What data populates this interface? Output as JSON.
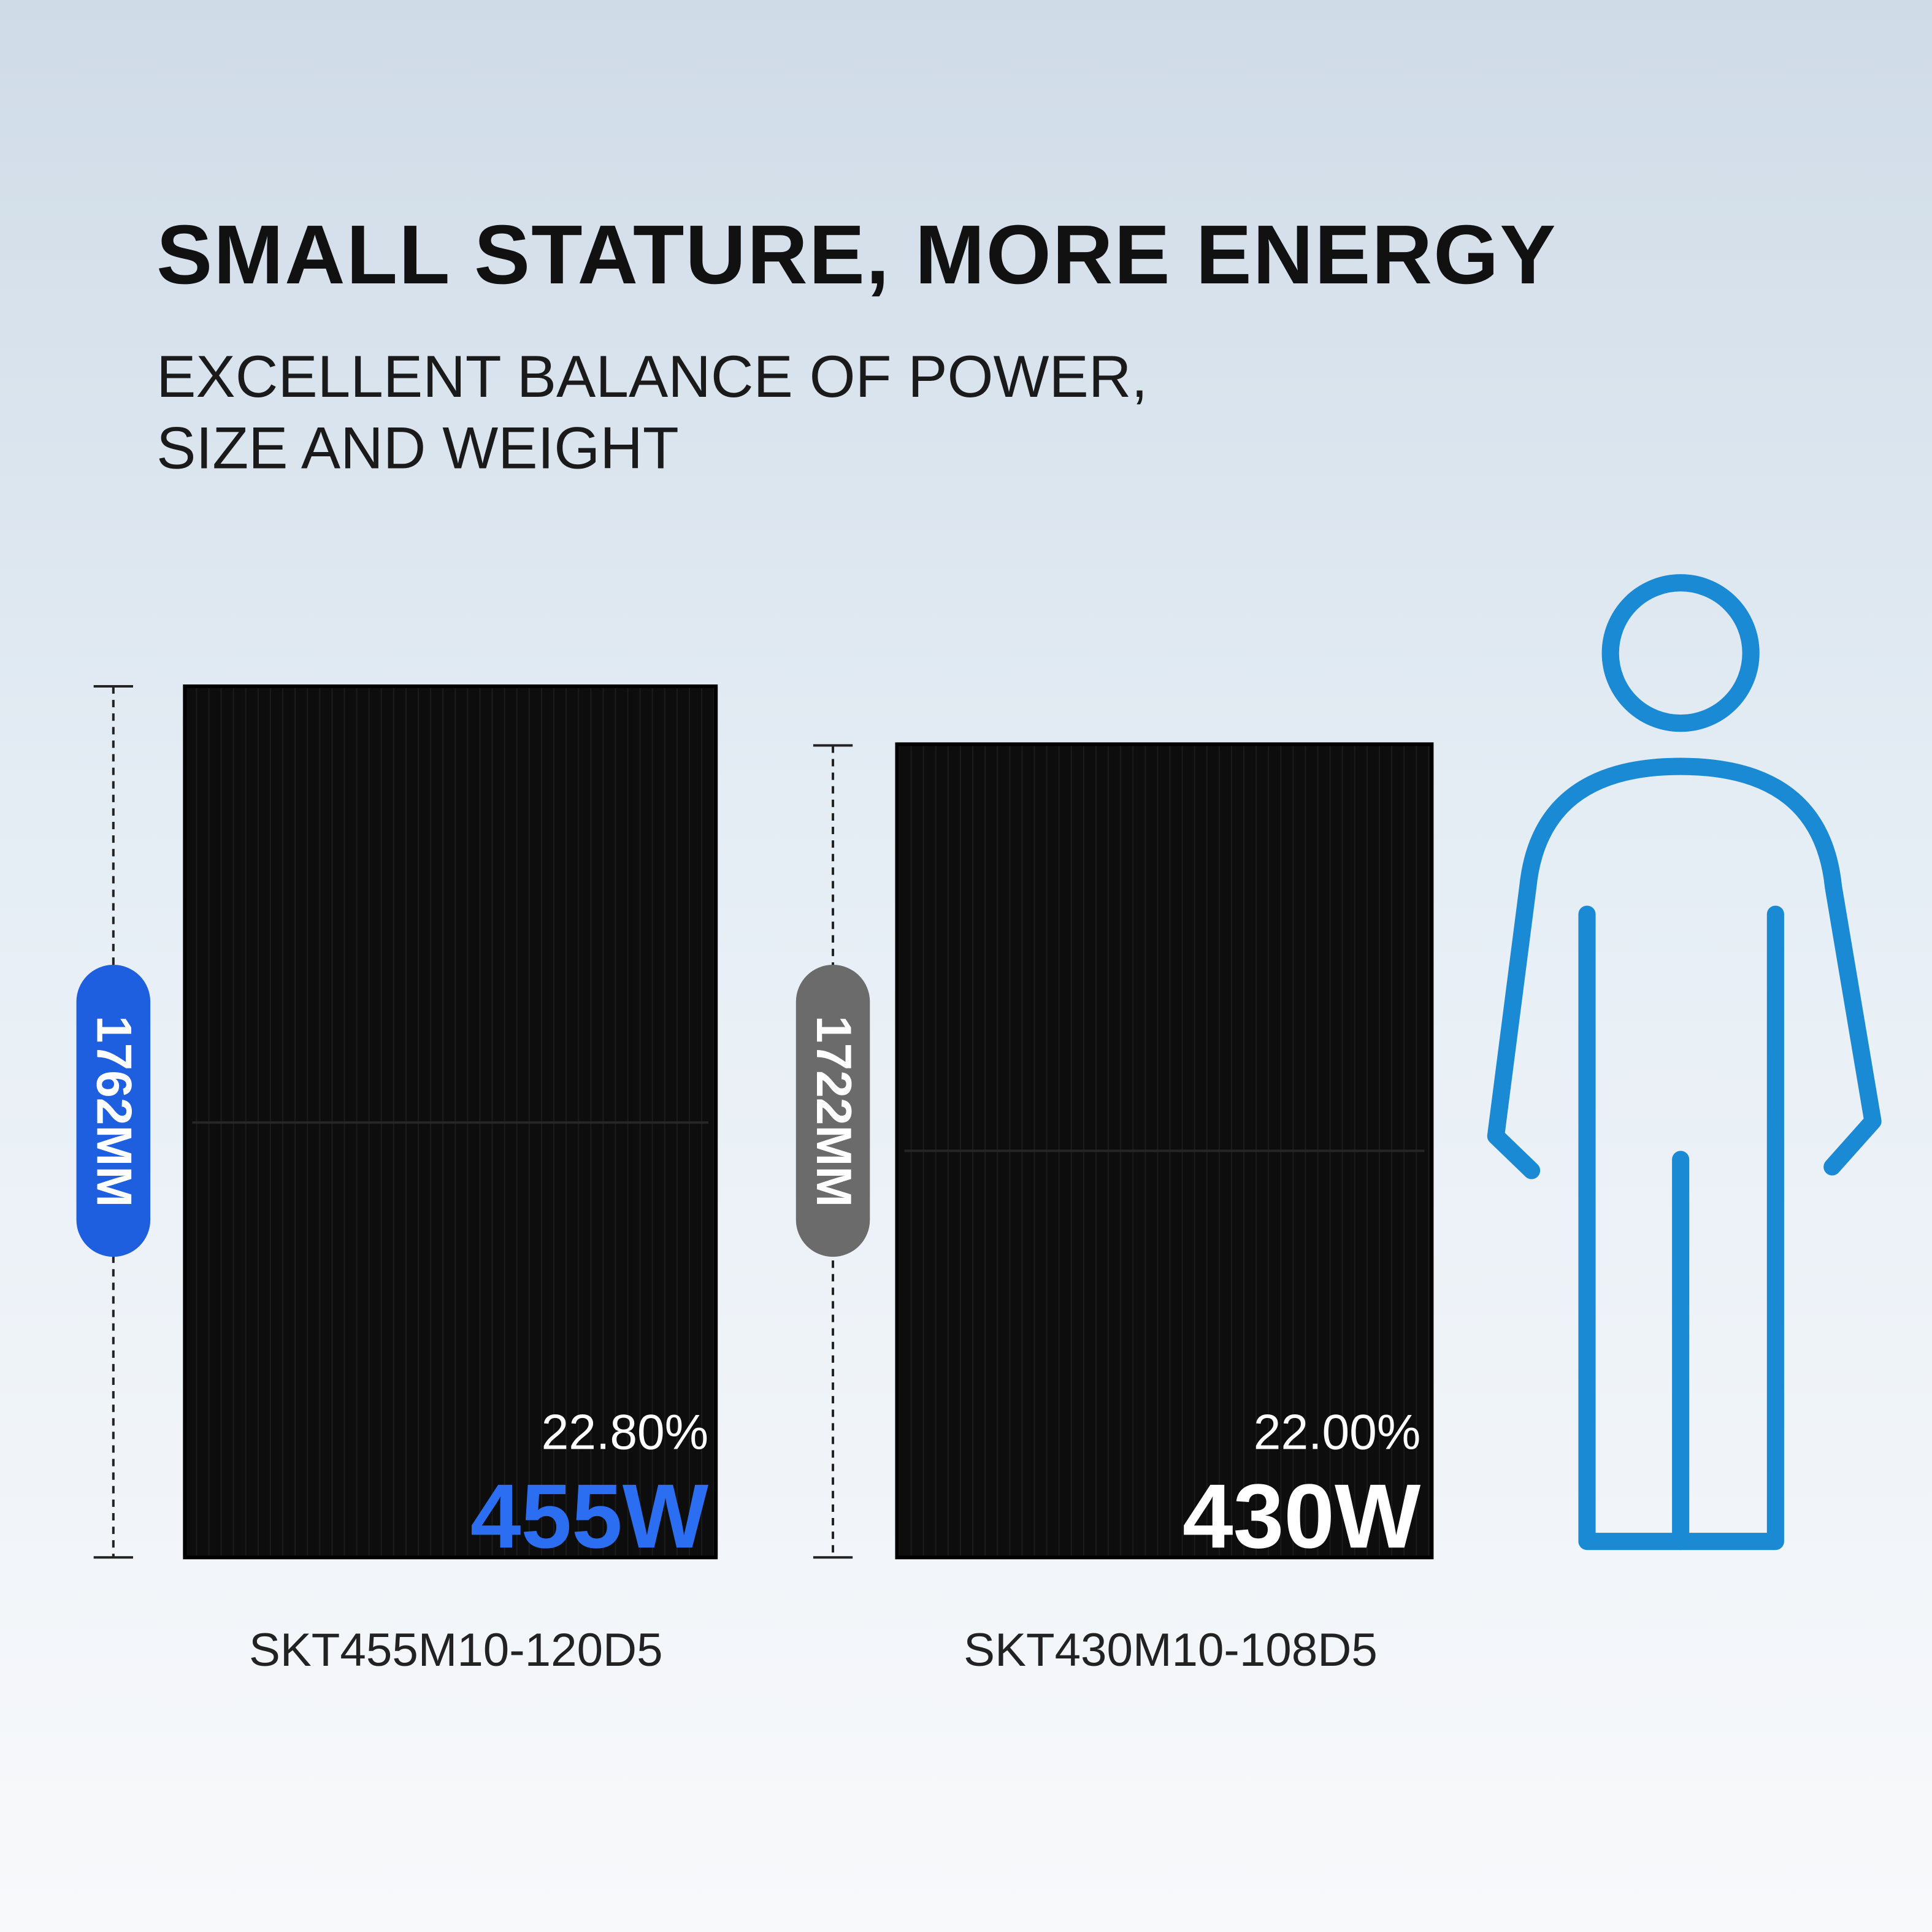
{
  "header": {
    "title": "SMALL STATURE, MORE ENERGY",
    "subtitle": [
      "EXCELLENT BALANCE OF POWER,",
      "SIZE AND WEIGHT"
    ]
  },
  "panels": [
    {
      "height": "1762MM",
      "efficiency": "22.80%",
      "power": "455W",
      "model": "SKT455M10-120D5"
    },
    {
      "height": "1722MM",
      "efficiency": "22.00%",
      "power": "430W",
      "model": "SKT430M10-108D5"
    }
  ]
}
